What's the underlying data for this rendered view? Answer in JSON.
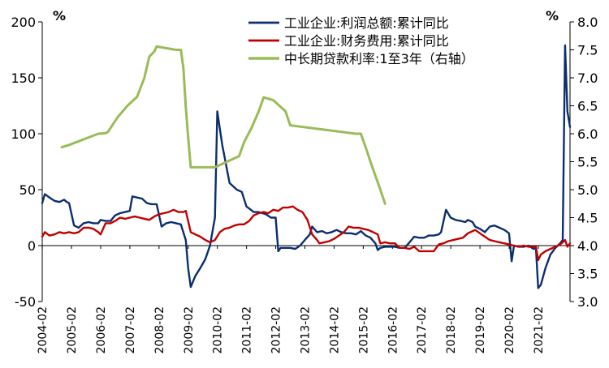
{
  "chart_data": {
    "type": "line",
    "left_axis": {
      "unit": "%",
      "ylim": [
        -50,
        200
      ],
      "ticks": [
        -50,
        0,
        50,
        100,
        150,
        200
      ]
    },
    "right_axis": {
      "unit": "%",
      "ylim": [
        3.0,
        8.0
      ],
      "ticks": [
        "3.0",
        "3.5",
        "4.0",
        "4.5",
        "5.0",
        "5.5",
        "6.0",
        "6.5",
        "7.0",
        "7.5",
        "8.0"
      ]
    },
    "x_ticks": [
      "2004-02",
      "2005-02",
      "2006-02",
      "2007-02",
      "2008-02",
      "2009-02",
      "2010-02",
      "2011-02",
      "2012-02",
      "2013-02",
      "2014-02",
      "2015-02",
      "2016-02",
      "2017-02",
      "2018-02",
      "2019-02",
      "2020-02",
      "2021-02"
    ],
    "legend_position": "top",
    "series": [
      {
        "name": "工业企业:利润总额:累计同比",
        "axis": "left",
        "color": "#0b2e6e",
        "points": [
          [
            2004.08,
            38
          ],
          [
            2004.17,
            46
          ],
          [
            2004.33,
            43
          ],
          [
            2004.5,
            40
          ],
          [
            2004.67,
            39
          ],
          [
            2004.83,
            41
          ],
          [
            2004.92,
            39
          ],
          [
            2005.0,
            38
          ],
          [
            2005.17,
            18
          ],
          [
            2005.33,
            16
          ],
          [
            2005.5,
            20
          ],
          [
            2005.67,
            21
          ],
          [
            2005.83,
            20
          ],
          [
            2006.0,
            20
          ],
          [
            2006.08,
            23
          ],
          [
            2006.25,
            22
          ],
          [
            2006.42,
            22
          ],
          [
            2006.58,
            27
          ],
          [
            2006.75,
            29
          ],
          [
            2006.92,
            30
          ],
          [
            2007.08,
            31
          ],
          [
            2007.17,
            44
          ],
          [
            2007.33,
            43
          ],
          [
            2007.5,
            42
          ],
          [
            2007.67,
            38
          ],
          [
            2007.83,
            37
          ],
          [
            2008.0,
            37
          ],
          [
            2008.17,
            17
          ],
          [
            2008.33,
            20
          ],
          [
            2008.5,
            21
          ],
          [
            2008.67,
            20
          ],
          [
            2008.83,
            19
          ],
          [
            2009.0,
            5
          ],
          [
            2009.08,
            -20
          ],
          [
            2009.17,
            -37
          ],
          [
            2009.33,
            -27
          ],
          [
            2009.5,
            -20
          ],
          [
            2009.67,
            -12
          ],
          [
            2009.83,
            0
          ],
          [
            2010.0,
            25
          ],
          [
            2010.08,
            120
          ],
          [
            2010.25,
            90
          ],
          [
            2010.5,
            56
          ],
          [
            2010.75,
            50
          ],
          [
            2010.92,
            48
          ],
          [
            2011.08,
            35
          ],
          [
            2011.33,
            30
          ],
          [
            2011.5,
            30
          ],
          [
            2011.75,
            28
          ],
          [
            2011.92,
            25
          ],
          [
            2012.08,
            25
          ],
          [
            2012.17,
            -5
          ],
          [
            2012.25,
            -2
          ],
          [
            2012.42,
            -2
          ],
          [
            2012.58,
            -2
          ],
          [
            2012.75,
            -3
          ],
          [
            2012.92,
            0
          ],
          [
            2013.08,
            5
          ],
          [
            2013.25,
            10
          ],
          [
            2013.33,
            17
          ],
          [
            2013.5,
            12
          ],
          [
            2013.67,
            13
          ],
          [
            2013.83,
            11
          ],
          [
            2014.0,
            12
          ],
          [
            2014.17,
            14
          ],
          [
            2014.33,
            12
          ],
          [
            2014.5,
            11
          ],
          [
            2014.67,
            11
          ],
          [
            2014.83,
            10
          ],
          [
            2015.0,
            13
          ],
          [
            2015.17,
            9
          ],
          [
            2015.33,
            7
          ],
          [
            2015.5,
            2
          ],
          [
            2015.58,
            -4
          ],
          [
            2015.67,
            -2
          ],
          [
            2015.83,
            -1
          ],
          [
            2016.0,
            -1
          ],
          [
            2016.17,
            -1
          ],
          [
            2016.33,
            -2
          ],
          [
            2016.5,
            -2
          ],
          [
            2016.67,
            3
          ],
          [
            2016.83,
            8
          ],
          [
            2017.0,
            7
          ],
          [
            2017.17,
            7
          ],
          [
            2017.33,
            9
          ],
          [
            2017.5,
            9
          ],
          [
            2017.67,
            10
          ],
          [
            2017.75,
            12
          ],
          [
            2017.92,
            32
          ],
          [
            2018.08,
            25
          ],
          [
            2018.25,
            23
          ],
          [
            2018.42,
            22
          ],
          [
            2018.58,
            21
          ],
          [
            2018.67,
            23
          ],
          [
            2018.83,
            21
          ],
          [
            2018.92,
            17
          ],
          [
            2019.08,
            15
          ],
          [
            2019.25,
            12
          ],
          [
            2019.42,
            17
          ],
          [
            2019.58,
            18
          ],
          [
            2019.75,
            16
          ],
          [
            2019.92,
            14
          ],
          [
            2020.08,
            11
          ],
          [
            2020.17,
            -14
          ],
          [
            2020.25,
            0
          ],
          [
            2020.42,
            -1
          ],
          [
            2020.58,
            -1
          ],
          [
            2020.75,
            0
          ],
          [
            2020.92,
            -3
          ],
          [
            2021.0,
            -2
          ],
          [
            2021.08,
            -38
          ],
          [
            2021.17,
            -35
          ],
          [
            2021.33,
            -20
          ],
          [
            2021.5,
            -8
          ],
          [
            2021.67,
            -2
          ],
          [
            2021.83,
            2
          ],
          [
            2021.92,
            5
          ],
          [
            2022.0,
            179
          ],
          [
            2022.08,
            120
          ],
          [
            2022.17,
            106
          ]
        ]
      },
      {
        "name": "工业企业:财务费用:累计同比",
        "axis": "left",
        "color": "#c00000",
        "points": [
          [
            2004.08,
            8
          ],
          [
            2004.17,
            12
          ],
          [
            2004.33,
            9
          ],
          [
            2004.5,
            10
          ],
          [
            2004.67,
            12
          ],
          [
            2004.83,
            11
          ],
          [
            2005.0,
            12
          ],
          [
            2005.17,
            11
          ],
          [
            2005.33,
            12
          ],
          [
            2005.5,
            16
          ],
          [
            2005.67,
            16
          ],
          [
            2005.83,
            15
          ],
          [
            2006.0,
            12
          ],
          [
            2006.08,
            10
          ],
          [
            2006.25,
            20
          ],
          [
            2006.42,
            20
          ],
          [
            2006.58,
            22
          ],
          [
            2006.75,
            25
          ],
          [
            2006.92,
            24
          ],
          [
            2007.08,
            25
          ],
          [
            2007.25,
            26
          ],
          [
            2007.42,
            25
          ],
          [
            2007.58,
            24
          ],
          [
            2007.75,
            23
          ],
          [
            2007.92,
            26
          ],
          [
            2008.08,
            28
          ],
          [
            2008.25,
            29
          ],
          [
            2008.42,
            30
          ],
          [
            2008.58,
            32
          ],
          [
            2008.75,
            30
          ],
          [
            2008.92,
            30
          ],
          [
            2009.0,
            31
          ],
          [
            2009.17,
            12
          ],
          [
            2009.33,
            10
          ],
          [
            2009.5,
            8
          ],
          [
            2009.67,
            5
          ],
          [
            2009.83,
            3
          ],
          [
            2010.0,
            5
          ],
          [
            2010.17,
            12
          ],
          [
            2010.33,
            15
          ],
          [
            2010.5,
            16
          ],
          [
            2010.67,
            18
          ],
          [
            2010.83,
            19
          ],
          [
            2011.0,
            19
          ],
          [
            2011.17,
            22
          ],
          [
            2011.33,
            27
          ],
          [
            2011.5,
            29
          ],
          [
            2011.67,
            30
          ],
          [
            2011.83,
            29
          ],
          [
            2012.0,
            32
          ],
          [
            2012.17,
            31
          ],
          [
            2012.33,
            34
          ],
          [
            2012.5,
            34
          ],
          [
            2012.67,
            35
          ],
          [
            2012.83,
            32
          ],
          [
            2013.0,
            30
          ],
          [
            2013.17,
            23
          ],
          [
            2013.33,
            10
          ],
          [
            2013.5,
            5
          ],
          [
            2013.58,
            2
          ],
          [
            2013.75,
            3
          ],
          [
            2013.92,
            4
          ],
          [
            2014.08,
            6
          ],
          [
            2014.25,
            9
          ],
          [
            2014.42,
            12
          ],
          [
            2014.58,
            17
          ],
          [
            2014.75,
            16
          ],
          [
            2014.92,
            16
          ],
          [
            2015.08,
            15
          ],
          [
            2015.25,
            14
          ],
          [
            2015.42,
            12
          ],
          [
            2015.58,
            10
          ],
          [
            2015.67,
            2
          ],
          [
            2015.83,
            3
          ],
          [
            2016.0,
            2
          ],
          [
            2016.17,
            2
          ],
          [
            2016.33,
            -2
          ],
          [
            2016.5,
            -2
          ],
          [
            2016.67,
            -3
          ],
          [
            2016.83,
            -1
          ],
          [
            2017.0,
            -5
          ],
          [
            2017.17,
            -5
          ],
          [
            2017.33,
            -5
          ],
          [
            2017.5,
            -5
          ],
          [
            2017.67,
            1
          ],
          [
            2017.83,
            2
          ],
          [
            2018.0,
            4
          ],
          [
            2018.17,
            5
          ],
          [
            2018.33,
            6
          ],
          [
            2018.5,
            7
          ],
          [
            2018.67,
            11
          ],
          [
            2018.83,
            13
          ],
          [
            2018.92,
            14
          ],
          [
            2019.08,
            11
          ],
          [
            2019.25,
            8
          ],
          [
            2019.42,
            5
          ],
          [
            2019.58,
            4
          ],
          [
            2019.75,
            3
          ],
          [
            2019.92,
            2
          ],
          [
            2020.08,
            1
          ],
          [
            2020.25,
            0
          ],
          [
            2020.42,
            -1
          ],
          [
            2020.58,
            0
          ],
          [
            2020.75,
            -1
          ],
          [
            2020.92,
            -1
          ],
          [
            2021.0,
            -1
          ],
          [
            2021.08,
            -13
          ],
          [
            2021.17,
            -8
          ],
          [
            2021.33,
            -5
          ],
          [
            2021.5,
            -3
          ],
          [
            2021.67,
            -1
          ],
          [
            2021.83,
            1
          ],
          [
            2021.92,
            3
          ],
          [
            2022.0,
            5
          ],
          [
            2022.08,
            -1
          ],
          [
            2022.17,
            2
          ]
        ]
      },
      {
        "name": "中长期贷款利率:1至3年（右轴）",
        "axis": "right",
        "color": "#9bbb59",
        "points": [
          [
            2004.75,
            5.76
          ],
          [
            2005.0,
            5.8
          ],
          [
            2006.0,
            6.0
          ],
          [
            2006.25,
            6.01
          ],
          [
            2006.33,
            6.03
          ],
          [
            2006.67,
            6.3
          ],
          [
            2007.0,
            6.5
          ],
          [
            2007.33,
            6.66
          ],
          [
            2007.58,
            7.0
          ],
          [
            2007.67,
            7.2
          ],
          [
            2007.75,
            7.38
          ],
          [
            2007.92,
            7.47
          ],
          [
            2008.0,
            7.56
          ],
          [
            2008.67,
            7.5
          ],
          [
            2008.83,
            7.5
          ],
          [
            2008.92,
            7.17
          ],
          [
            2009.0,
            6.48
          ],
          [
            2009.08,
            5.94
          ],
          [
            2009.17,
            5.4
          ],
          [
            2010.0,
            5.4
          ],
          [
            2010.83,
            5.6
          ],
          [
            2011.0,
            5.85
          ],
          [
            2011.25,
            6.1
          ],
          [
            2011.5,
            6.4
          ],
          [
            2011.67,
            6.65
          ],
          [
            2012.0,
            6.6
          ],
          [
            2012.42,
            6.4
          ],
          [
            2012.58,
            6.15
          ],
          [
            2014.83,
            6.0
          ],
          [
            2015.0,
            6.0
          ],
          [
            2015.17,
            5.75
          ],
          [
            2015.33,
            5.5
          ],
          [
            2015.5,
            5.25
          ],
          [
            2015.67,
            5.0
          ],
          [
            2015.83,
            4.75
          ]
        ]
      }
    ],
    "title": "",
    "xlabel": "",
    "ylabel": ""
  }
}
